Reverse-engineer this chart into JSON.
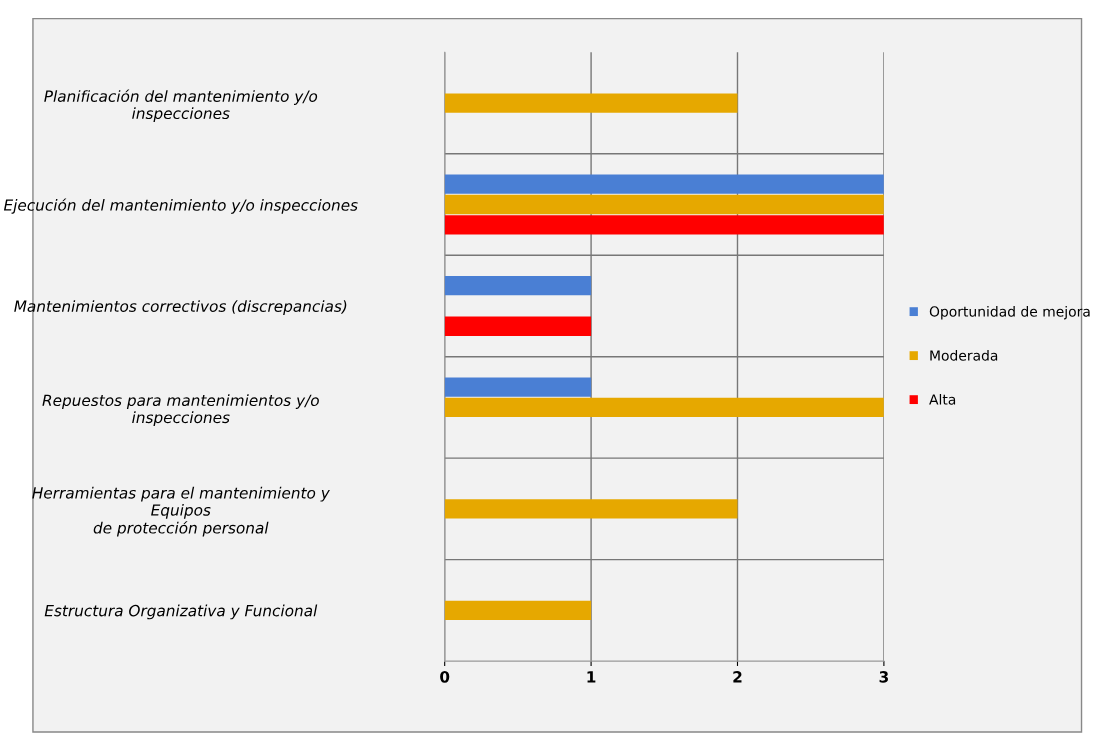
{
  "chart_data": {
    "type": "bar",
    "orientation": "horizontal",
    "categories": [
      "Planificación del mantenimiento y/o inspecciones",
      "Ejecución del mantenimiento y/o inspecciones",
      "Mantenimientos correctivos (discrepancias)",
      "Repuestos para mantenimientos y/o inspecciones",
      "Herramientas para el mantenimiento y Equipos de protección personal",
      "Estructura Organizativa y Funcional"
    ],
    "series": [
      {
        "name": "Oportunidad de mejora",
        "color": "#4a7fd4",
        "values": [
          null,
          3,
          1,
          1,
          null,
          null
        ]
      },
      {
        "name": "Moderada",
        "color": "#e6a800",
        "values": [
          2,
          3,
          null,
          3,
          2,
          1
        ]
      },
      {
        "name": "Alta",
        "color": "#ff0000",
        "values": [
          null,
          3,
          1,
          null,
          null,
          null
        ]
      }
    ],
    "xlim": [
      0,
      3
    ],
    "xticks": [
      0,
      1,
      2,
      3
    ],
    "grid": true,
    "legend": "right"
  }
}
